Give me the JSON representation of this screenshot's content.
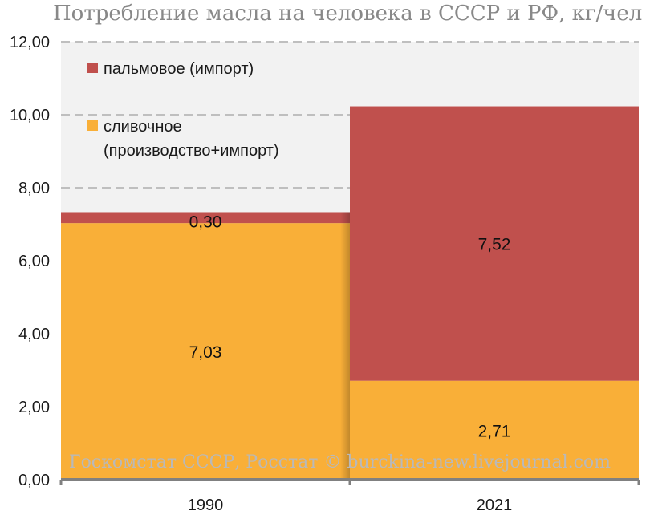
{
  "chart_data": {
    "type": "bar",
    "stacked": true,
    "title": "Потребление масла на человека в СССР и РФ, кг/чел",
    "categories": [
      "1990",
      "2021"
    ],
    "series": [
      {
        "name": "сливочное (производство+импорт)",
        "legend_lines": [
          "сливочное",
          "(производство+импорт)"
        ],
        "color": "#F9AF38",
        "values": [
          7.03,
          2.71
        ],
        "labels": [
          "7,03",
          "2,71"
        ]
      },
      {
        "name": "пальмовое (импорт)",
        "legend_lines": [
          "пальмовое (импорт)"
        ],
        "color": "#C0504D",
        "values": [
          0.3,
          7.52
        ],
        "labels": [
          "0,30",
          "7,52"
        ]
      }
    ],
    "ylim": [
      0,
      12
    ],
    "yticks": [
      0,
      2,
      4,
      6,
      8,
      10,
      12
    ],
    "ytick_labels": [
      "0,00",
      "2,00",
      "4,00",
      "6,00",
      "8,00",
      "10,00",
      "12,00"
    ],
    "grid": true,
    "legend_position": "top-left",
    "plot_background": "#F2F2F2",
    "watermark": "Госкомстат СССР, Росстат © burckina-new.livejournal.com"
  }
}
